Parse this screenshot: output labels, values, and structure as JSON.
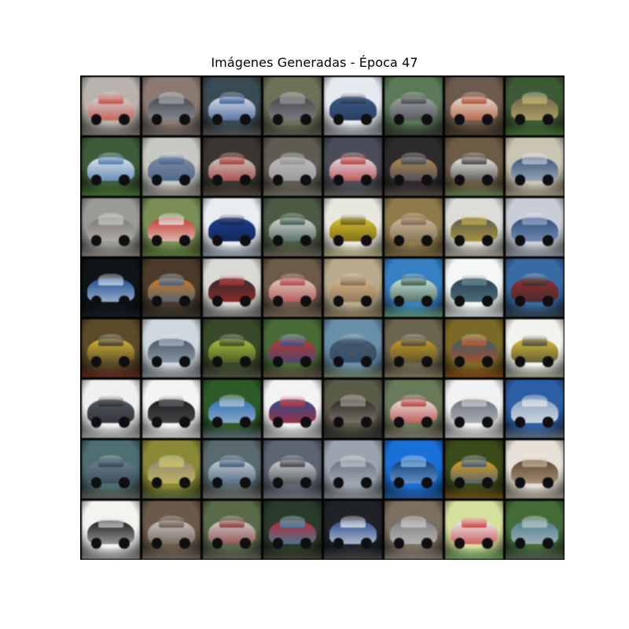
{
  "figure": {
    "title": "Imágenes Generadas - Época 47",
    "grid": {
      "rows": 8,
      "cols": 8
    }
  },
  "tiles": [
    {
      "bg": "#b9b3ad",
      "car": "#cfd2d6",
      "accent": "#c03a2b",
      "ground": "#7c746d"
    },
    {
      "bg": "#8a7a72",
      "car": "#4a4c52",
      "accent": "#9a9ea6",
      "ground": "#6e6660"
    },
    {
      "bg": "#3a4a52",
      "car": "#d7dde3",
      "accent": "#2b4f8a",
      "ground": "#5a5a5a"
    },
    {
      "bg": "#6f7158",
      "car": "#4a4a4a",
      "accent": "#8d8f95",
      "ground": "#595a4e"
    },
    {
      "bg": "#e6eaee",
      "car": "#3c5a86",
      "accent": "#23324a",
      "ground": "#8e9196"
    },
    {
      "bg": "#5b7a5a",
      "car": "#9ea3a7",
      "accent": "#3b3b3b",
      "ground": "#3a3f36"
    },
    {
      "bg": "#6a5b4d",
      "car": "#e1dcd0",
      "accent": "#a64020",
      "ground": "#4a3a2c"
    },
    {
      "bg": "#3f5a35",
      "car": "#6f6a4c",
      "accent": "#c3b06e",
      "ground": "#4b7a3a"
    },
    {
      "bg": "#3f5c3a",
      "car": "#dfe3e6",
      "accent": "#3b6ea5",
      "ground": "#4d7a35"
    },
    {
      "bg": "#c8c8c2",
      "car": "#7f8a96",
      "accent": "#3c5d8c",
      "ground": "#8f8f86"
    },
    {
      "bg": "#3a3530",
      "car": "#c9c6c2",
      "accent": "#9a2a20",
      "ground": "#5a514a"
    },
    {
      "bg": "#5f5a52",
      "car": "#bdbdbf",
      "accent": "#8c8c8c",
      "ground": "#7a746c"
    },
    {
      "bg": "#4a4d58",
      "car": "#dcdde2",
      "accent": "#b02a2a",
      "ground": "#6b6560"
    },
    {
      "bg": "#2c2a2a",
      "car": "#b2894e",
      "accent": "#2d3a5a",
      "ground": "#5b534a"
    },
    {
      "bg": "#6c5c46",
      "car": "#e7e7e3",
      "accent": "#2c2c2c",
      "ground": "#6f8a5b"
    },
    {
      "bg": "#c9c4b4",
      "car": "#3d5577",
      "accent": "#b8c2cc",
      "ground": "#a59a83"
    },
    {
      "bg": "#9a9a96",
      "car": "#7d7a72",
      "accent": "#c2c0bb",
      "ground": "#8e8b84"
    },
    {
      "bg": "#7a8f57",
      "car": "#c23a32",
      "accent": "#e6e6e2",
      "ground": "#5f7a3c"
    },
    {
      "bg": "#e9edf1",
      "car": "#1d3f8c",
      "accent": "#0f1f44",
      "ground": "#8e98a6"
    },
    {
      "bg": "#4d5a44",
      "car": "#d6d8d6",
      "accent": "#2a4a3a",
      "ground": "#6f6a5e"
    },
    {
      "bg": "#e8e8e0",
      "car": "#d6c232",
      "accent": "#5a4e1a",
      "ground": "#b7ad7a"
    },
    {
      "bg": "#8d7a4c",
      "car": "#c9b79a",
      "accent": "#6e5b3f",
      "ground": "#7a6a4a"
    },
    {
      "bg": "#dcdcd8",
      "car": "#5c5a52",
      "accent": "#c0a83a",
      "ground": "#a7a28f"
    },
    {
      "bg": "#c9ced6",
      "car": "#2e4f7c",
      "accent": "#8da0bf",
      "ground": "#9198a2"
    },
    {
      "bg": "#0f1417",
      "car": "#1f4a8c",
      "accent": "#c7d3e2",
      "ground": "#1a2026"
    },
    {
      "bg": "#4a3a2a",
      "car": "#c87a2a",
      "accent": "#2a5a8a",
      "ground": "#3a3a30"
    },
    {
      "bg": "#d9d9d6",
      "car": "#2c2c2e",
      "accent": "#b02828",
      "ground": "#777777"
    },
    {
      "bg": "#6c5b4a",
      "car": "#d8d0c6",
      "accent": "#a83030",
      "ground": "#7a6a5a"
    },
    {
      "bg": "#b8aa8f",
      "car": "#d2b58b",
      "accent": "#7a6246",
      "ground": "#8d7e62"
    },
    {
      "bg": "#3a7fbf",
      "car": "#c7e3d9",
      "accent": "#2c4a3a",
      "ground": "#6aa07a"
    },
    {
      "bg": "#f5f7f7",
      "car": "#2b3f52",
      "accent": "#5a7f86",
      "ground": "#c8d0d2"
    },
    {
      "bg": "#3a6aa0",
      "car": "#8f2f2f",
      "accent": "#2a2a2a",
      "ground": "#3a4450"
    },
    {
      "bg": "#5a4a2a",
      "car": "#d4b438",
      "accent": "#2a2a2a",
      "ground": "#6a2a20"
    },
    {
      "bg": "#cfd7dd",
      "car": "#4c5561",
      "accent": "#9fb1c2",
      "ground": "#8d9196"
    },
    {
      "bg": "#3a4a2a",
      "car": "#a7bc44",
      "accent": "#2a3a1a",
      "ground": "#5a5a48"
    },
    {
      "bg": "#4a6a3a",
      "car": "#b23a2a",
      "accent": "#2a4a8a",
      "ground": "#6a5a4a"
    },
    {
      "bg": "#6a8fa8",
      "car": "#4b5a68",
      "accent": "#2a4a6a",
      "ground": "#7a8a6a"
    },
    {
      "bg": "#6b6450",
      "car": "#c29a2c",
      "accent": "#3d3a30",
      "ground": "#8a7f66"
    },
    {
      "bg": "#7a6a2a",
      "car": "#3a5a6a",
      "accent": "#c2501c",
      "ground": "#8a4a1a"
    },
    {
      "bg": "#f2f2ee",
      "car": "#d2ba3a",
      "accent": "#3a3a3a",
      "ground": "#9a9a8a"
    },
    {
      "bg": "#f0f0ee",
      "car": "#4e5660",
      "accent": "#2a2a2a",
      "ground": "#a7abaf"
    },
    {
      "bg": "#f4f4f4",
      "car": "#1e1e22",
      "accent": "#555555",
      "ground": "#cfcfcf"
    },
    {
      "bg": "#2f5a2a",
      "car": "#2f6fb0",
      "accent": "#b0c0d0",
      "ground": "#6a7a8a"
    },
    {
      "bg": "#f3f3f3",
      "car": "#2a4a8a",
      "accent": "#c02a2a",
      "ground": "#b9b9b9"
    },
    {
      "bg": "#5a5a4a",
      "car": "#2a2a28",
      "accent": "#9a8f80",
      "ground": "#3a3a32"
    },
    {
      "bg": "#6a7a5a",
      "car": "#e3e3e0",
      "accent": "#b02a2a",
      "ground": "#8a7f70"
    },
    {
      "bg": "#f1f1f1",
      "car": "#6e757c",
      "accent": "#c0c6cc",
      "ground": "#bfc2c4"
    },
    {
      "bg": "#2f5fa2",
      "car": "#8ea3bc",
      "accent": "#e2e8ee",
      "ground": "#6a7a8a"
    },
    {
      "bg": "#4f6f72",
      "car": "#6e7e8a",
      "accent": "#2a3a4a",
      "ground": "#6a6a60"
    },
    {
      "bg": "#8a8a3a",
      "car": "#8e8a7a",
      "accent": "#d2c25a",
      "ground": "#5a6a3a"
    },
    {
      "bg": "#5a6a6e",
      "car": "#c9cdd1",
      "accent": "#2a4a6a",
      "ground": "#7a7a72"
    },
    {
      "bg": "#5c6570",
      "car": "#cdd3da",
      "accent": "#2a2a2c",
      "ground": "#7a7e84"
    },
    {
      "bg": "#9aa4ae",
      "car": "#6b7380",
      "accent": "#b6bcc3",
      "ground": "#8a8f94"
    },
    {
      "bg": "#1d6fd2",
      "car": "#143a72",
      "accent": "#7fb7e7",
      "ground": "#2a5a9a"
    },
    {
      "bg": "#3a4a1a",
      "car": "#d6a222",
      "accent": "#2a4a8a",
      "ground": "#7a5a1a"
    },
    {
      "bg": "#e7e1d8",
      "car": "#5a4a3a",
      "accent": "#c0a88a",
      "ground": "#a59a8a"
    },
    {
      "bg": "#f3f3f0",
      "car": "#1f1f22",
      "accent": "#c2c2c2",
      "ground": "#8a8a86"
    },
    {
      "bg": "#6a5a4a",
      "car": "#c9c3bd",
      "accent": "#5a4a40",
      "ground": "#7a6e64"
    },
    {
      "bg": "#5a6a4a",
      "car": "#cfcdca",
      "accent": "#7a2a2a",
      "ground": "#6a6660"
    },
    {
      "bg": "#2a3a2a",
      "car": "#b02a3a",
      "accent": "#2a8fa8",
      "ground": "#4a4a3a"
    },
    {
      "bg": "#1f2328",
      "car": "#2a4a8a",
      "accent": "#e2e4e6",
      "ground": "#4a4e52"
    },
    {
      "bg": "#7a6f62",
      "car": "#7f8186",
      "accent": "#c9c6c2",
      "ground": "#8f877d"
    },
    {
      "bg": "#d6e0a0",
      "car": "#e8eef0",
      "accent": "#c02a2a",
      "ground": "#6aa060"
    },
    {
      "bg": "#456a3a",
      "car": "#4f7e8e",
      "accent": "#b7c2c6",
      "ground": "#5a6a5a"
    }
  ]
}
